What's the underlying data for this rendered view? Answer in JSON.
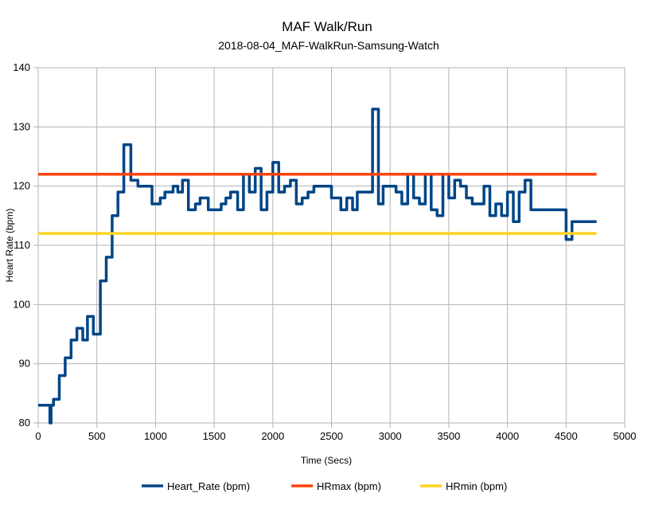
{
  "chart_data": {
    "type": "line",
    "title": "MAF Walk/Run",
    "subtitle": "2018-08-04_MAF-WalkRun-Samsung-Watch",
    "xlabel": "Time (Secs)",
    "ylabel": "Heart Rate (bpm)",
    "xlim": [
      0,
      5000
    ],
    "ylim": [
      80,
      140
    ],
    "xticks": [
      0,
      500,
      1000,
      1500,
      2000,
      2500,
      3000,
      3500,
      4000,
      4500,
      5000
    ],
    "yticks": [
      80,
      90,
      100,
      110,
      120,
      130,
      140
    ],
    "grid": true,
    "legend_position": "bottom",
    "series": [
      {
        "name": "Heart_Rate (bpm)",
        "color": "#004586",
        "step": true,
        "x": [
          0,
          100,
          110,
          130,
          180,
          230,
          280,
          330,
          380,
          420,
          470,
          530,
          580,
          630,
          680,
          730,
          790,
          850,
          970,
          1040,
          1080,
          1150,
          1190,
          1230,
          1280,
          1340,
          1380,
          1450,
          1560,
          1600,
          1640,
          1700,
          1750,
          1800,
          1850,
          1900,
          1950,
          2000,
          2050,
          2100,
          2150,
          2200,
          2250,
          2300,
          2350,
          2400,
          2450,
          2500,
          2580,
          2630,
          2680,
          2720,
          2780,
          2850,
          2900,
          2920,
          2940,
          3050,
          3100,
          3150,
          3200,
          3250,
          3300,
          3350,
          3400,
          3450,
          3500,
          3550,
          3600,
          3650,
          3700,
          3750,
          3800,
          3850,
          3900,
          3950,
          4000,
          4050,
          4100,
          4150,
          4200,
          4250,
          4300,
          4350,
          4400,
          4450,
          4500,
          4550,
          4620,
          4670,
          4720,
          4760
        ],
        "values": [
          83,
          80,
          83,
          84,
          88,
          91,
          94,
          96,
          94,
          98,
          95,
          104,
          108,
          115,
          119,
          127,
          121,
          120,
          117,
          118,
          119,
          120,
          119,
          121,
          116,
          117,
          118,
          116,
          117,
          118,
          119,
          116,
          122,
          119,
          123,
          116,
          119,
          124,
          119,
          120,
          121,
          117,
          118,
          119,
          120,
          120,
          120,
          118,
          116,
          118,
          116,
          119,
          119,
          133,
          117,
          117,
          120,
          119,
          117,
          122,
          118,
          117,
          122,
          116,
          115,
          122,
          118,
          121,
          120,
          118,
          117,
          117,
          120,
          115,
          117,
          115,
          119,
          114,
          119,
          121,
          116,
          116,
          116,
          116,
          116,
          116,
          111,
          114,
          114,
          114,
          114,
          114
        ]
      },
      {
        "name": "HRmax (bpm)",
        "color": "#ff420e",
        "x": [
          0,
          4760
        ],
        "values": [
          122,
          122
        ]
      },
      {
        "name": "HRmin (bpm)",
        "color": "#ffd320",
        "x": [
          0,
          4760
        ],
        "values": [
          112,
          112
        ]
      }
    ]
  }
}
